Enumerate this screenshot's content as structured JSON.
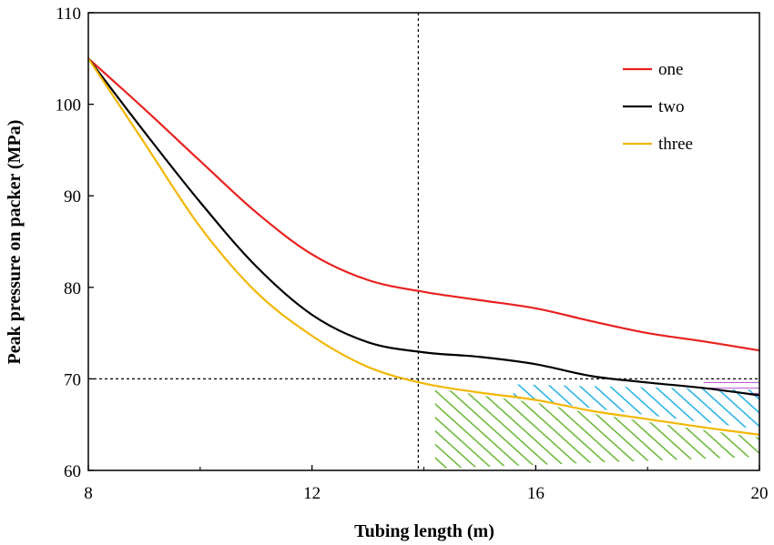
{
  "chart_data": {
    "type": "line",
    "title": "",
    "xlabel": "Tubing length (m)",
    "ylabel": "Peak pressure on packer (MPa)",
    "xlim": [
      8,
      20
    ],
    "ylim": [
      60,
      110
    ],
    "xticks": [
      8,
      12,
      16,
      20
    ],
    "xtick_labels": [
      "8",
      "12",
      "16",
      "20"
    ],
    "yticks": [
      60,
      70,
      80,
      90,
      100,
      110
    ],
    "ytick_labels": [
      "60",
      "70",
      "80",
      "90",
      "100",
      "110"
    ],
    "grid": false,
    "legend_position": "top-right",
    "series": [
      {
        "name": "one",
        "color": "#e8211f",
        "x": [
          8,
          9,
          10,
          11,
          12,
          13,
          14,
          15,
          16,
          17,
          18,
          19,
          20
        ],
        "y": [
          105,
          99.5,
          93.8,
          88.2,
          83.6,
          80.8,
          79.5,
          78.6,
          77.7,
          76.3,
          75.0,
          74.1,
          73.1
        ]
      },
      {
        "name": "two",
        "color": "#000000",
        "x": [
          8,
          9,
          10,
          11,
          12,
          13,
          14,
          15,
          16,
          17,
          18,
          19,
          20
        ],
        "y": [
          105,
          97.0,
          89.3,
          82.3,
          77.0,
          74.0,
          72.9,
          72.4,
          71.6,
          70.3,
          69.6,
          69.0,
          68.2
        ]
      },
      {
        "name": "three",
        "color": "#f2b705",
        "x": [
          8,
          9,
          10,
          11,
          12,
          13,
          14,
          15,
          16,
          17,
          18,
          19,
          20
        ],
        "y": [
          105,
          95.8,
          86.6,
          79.5,
          74.7,
          71.3,
          69.5,
          68.5,
          67.7,
          66.5,
          65.6,
          64.7,
          63.9
        ]
      }
    ],
    "reference_lines": {
      "horizontal_y": 70,
      "vertical_x": 13.9
    },
    "hatched_regions": [
      {
        "color": "#6fba3c",
        "x": [
          14.2,
          20
        ],
        "y_low": [
          60.2,
          61.5
        ],
        "follows": "three"
      },
      {
        "color": "#2db4e6",
        "x": [
          15.6,
          20
        ],
        "y_low": [
          67.9,
          64.5
        ],
        "y_high": [
          69.4,
          68.8
        ]
      },
      {
        "color": "#c05bd6",
        "x": [
          19.0,
          20
        ],
        "y_low": [
          68.9,
          68.3
        ],
        "y_high": [
          70.0,
          69.9
        ]
      }
    ]
  }
}
